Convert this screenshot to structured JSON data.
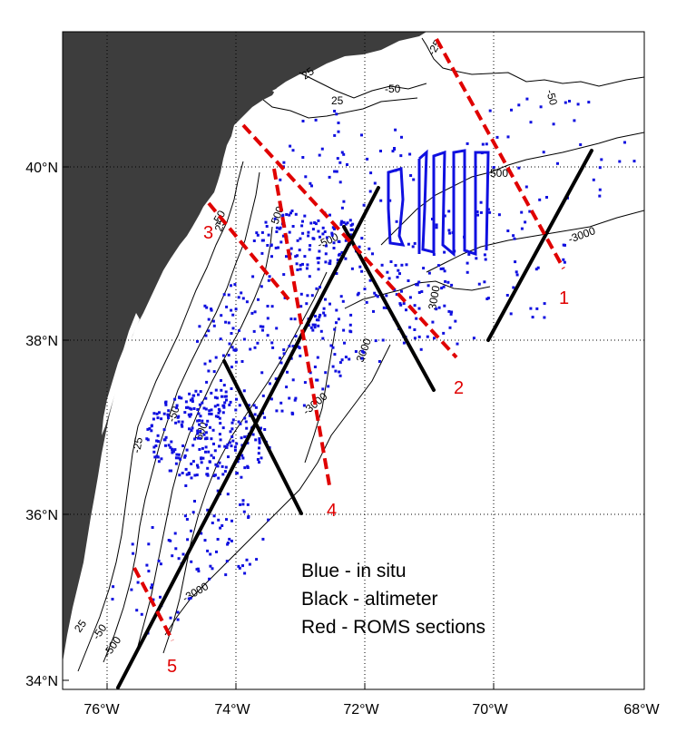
{
  "map": {
    "lon_ticks": [
      "76°W",
      "74°W",
      "72°W",
      "70°W",
      "68°W"
    ],
    "lat_ticks": [
      "40°N",
      "38°N",
      "36°N",
      "34°N"
    ],
    "lon_range": [
      -76.5,
      -68
    ],
    "lat_range": [
      33.8,
      41.5
    ],
    "grid": "dotted",
    "colors": {
      "land": "#3d3d3d",
      "ocean": "#ffffff",
      "in_situ": "#1010e0",
      "altimeter": "#000000",
      "roms": "#e00000",
      "contours": "#000000"
    },
    "contour_labels": [
      "25",
      "-25",
      "-50",
      "25",
      "-50",
      "500",
      "-500",
      "-500",
      "3000",
      "-3000",
      "-3000",
      "25",
      "-50",
      "500",
      "3000",
      "-25",
      "-50",
      "-3000",
      "25",
      "-50",
      "-500"
    ],
    "section_labels": [
      "1",
      "2",
      "3",
      "4",
      "5"
    ],
    "legend": [
      "Blue - in situ",
      "Black - altimeter",
      "Red - ROMS sections"
    ]
  }
}
